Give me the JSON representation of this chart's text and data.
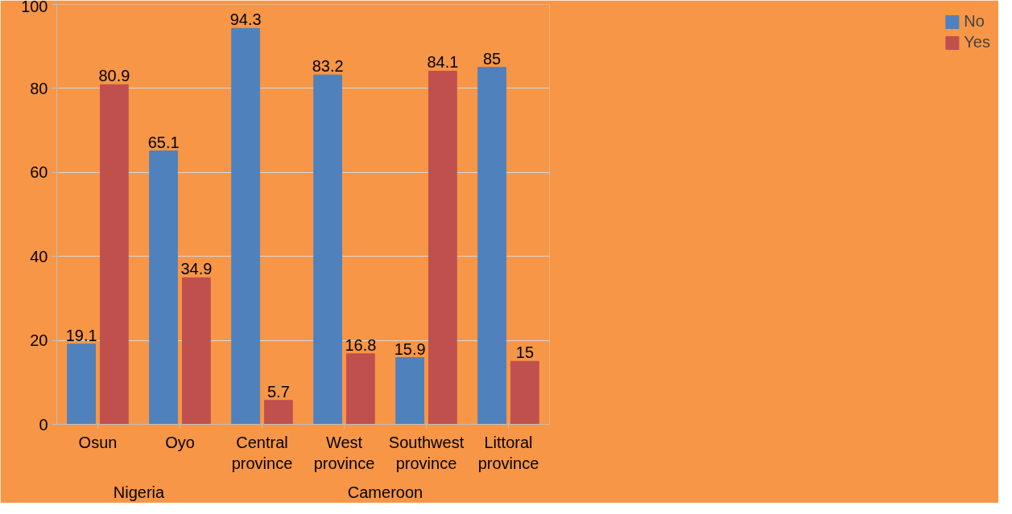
{
  "chart_data": {
    "type": "bar",
    "categories": [
      "Osun",
      "Oyo",
      "Central province",
      "West province",
      "Southwest province",
      "Littoral province"
    ],
    "series": [
      {
        "name": "No",
        "color": "#4f81bd",
        "values": [
          19.1,
          65.1,
          94.3,
          83.2,
          15.9,
          85
        ]
      },
      {
        "name": "Yes",
        "color": "#c0504d",
        "values": [
          80.9,
          34.9,
          5.7,
          16.8,
          84.1,
          15
        ]
      }
    ],
    "ylim": [
      0,
      100
    ],
    "yticks": [
      0,
      20,
      40,
      60,
      80,
      100
    ],
    "grid": "y",
    "legend": "right",
    "data_labels": true,
    "annotations": [
      "Nigeria",
      "Cameroon"
    ]
  }
}
